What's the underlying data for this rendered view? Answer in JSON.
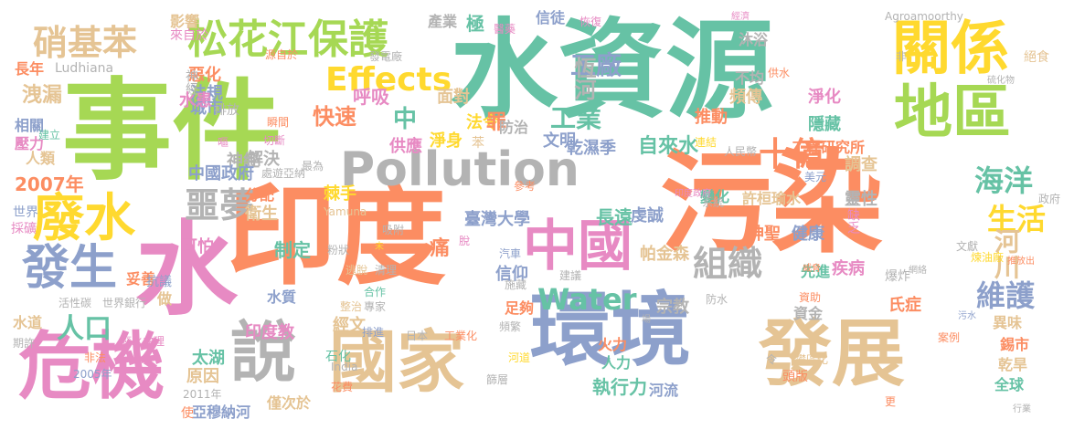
{
  "colors": {
    "green": "#66c2a5",
    "orange": "#fc8d62",
    "blue": "#8da0cb",
    "pink": "#e78ac3",
    "lime": "#a6d854",
    "yellow": "#ffd92f",
    "tan": "#e5c494",
    "gray": "#b3b3b3"
  },
  "words": [
    {
      "t": "事件",
      "c": "lime"
    },
    {
      "t": "水資源",
      "c": "green"
    },
    {
      "t": "污染",
      "c": "orange"
    },
    {
      "t": "印度",
      "c": "orange"
    },
    {
      "t": "環境",
      "c": "blue"
    },
    {
      "t": "發展",
      "c": "tan"
    },
    {
      "t": "水",
      "c": "pink"
    },
    {
      "t": "危機",
      "c": "pink"
    },
    {
      "t": "國家",
      "c": "tan"
    },
    {
      "t": "Pollution",
      "c": "gray"
    },
    {
      "t": "關係",
      "c": "yellow"
    },
    {
      "t": "地區",
      "c": "lime"
    },
    {
      "t": "中國",
      "c": "pink"
    },
    {
      "t": "說",
      "c": "gray"
    },
    {
      "t": "廢水",
      "c": "yellow"
    },
    {
      "t": "發生",
      "c": "blue"
    },
    {
      "t": "松花江保護",
      "c": "lime"
    },
    {
      "t": "硝基苯",
      "c": "tan"
    },
    {
      "t": "Effects",
      "c": "yellow"
    },
    {
      "t": "組織",
      "c": "gray"
    },
    {
      "t": "Water",
      "c": "green"
    },
    {
      "t": "工廠",
      "c": "blue"
    },
    {
      "t": "恆河",
      "c": "gray"
    },
    {
      "t": "工業",
      "c": "green"
    },
    {
      "t": "噩夢",
      "c": "gray"
    },
    {
      "t": "海洋",
      "c": "green"
    },
    {
      "t": "生活",
      "c": "yellow"
    },
    {
      "t": "河川",
      "c": "tan"
    },
    {
      "t": "維護",
      "c": "blue"
    },
    {
      "t": "十億",
      "c": "orange"
    },
    {
      "t": "人口",
      "c": "green"
    },
    {
      "t": "洩漏",
      "c": "tan"
    },
    {
      "t": "快速",
      "c": "orange"
    },
    {
      "t": "中",
      "c": "green"
    },
    {
      "t": "2007年",
      "c": "orange"
    },
    {
      "t": "自來水",
      "c": "green"
    },
    {
      "t": "工程研究所",
      "c": "orange"
    },
    {
      "t": "乾濕季",
      "c": "blue"
    },
    {
      "t": "許桓瑜水",
      "c": "tan"
    },
    {
      "t": "變化",
      "c": "green"
    },
    {
      "t": "臺灣大學",
      "c": "blue"
    },
    {
      "t": "長遠",
      "c": "green"
    },
    {
      "t": "虔誠",
      "c": "blue"
    },
    {
      "t": "帕金森",
      "c": "tan"
    },
    {
      "t": "健康",
      "c": "blue"
    },
    {
      "t": "神聖",
      "c": "orange"
    },
    {
      "t": "異味",
      "c": "tan"
    },
    {
      "t": "錫市",
      "c": "orange"
    },
    {
      "t": "乾旱",
      "c": "tan"
    },
    {
      "t": "全球",
      "c": "green"
    },
    {
      "t": "太湖",
      "c": "green"
    },
    {
      "t": "原因",
      "c": "tan"
    },
    {
      "t": "印度教",
      "c": "pink"
    },
    {
      "t": "經文",
      "c": "tan"
    },
    {
      "t": "水質",
      "c": "blue"
    },
    {
      "t": "制定",
      "c": "green"
    },
    {
      "t": "痛",
      "c": "orange"
    },
    {
      "t": "信仰",
      "c": "blue"
    },
    {
      "t": "足夠",
      "c": "orange"
    },
    {
      "t": "宗教",
      "c": "gray"
    },
    {
      "t": "火力",
      "c": "orange"
    },
    {
      "t": "人力",
      "c": "green"
    },
    {
      "t": "執行力",
      "c": "green"
    },
    {
      "t": "河流",
      "c": "blue"
    },
    {
      "t": "僅次於",
      "c": "tan"
    },
    {
      "t": "亞穆納河",
      "c": "blue"
    },
    {
      "t": "花費",
      "c": "orange"
    },
    {
      "t": "石化",
      "c": "green"
    },
    {
      "t": "2011年",
      "c": "gray"
    },
    {
      "t": "使",
      "c": "orange"
    },
    {
      "t": "可怕",
      "c": "pink"
    },
    {
      "t": "衛生",
      "c": "tan"
    },
    {
      "t": "分配",
      "c": "orange"
    },
    {
      "t": "解決",
      "c": "gray"
    },
    {
      "t": "棘手",
      "c": "yellow"
    },
    {
      "t": "神經",
      "c": "gray"
    },
    {
      "t": "中國政府",
      "c": "blue"
    },
    {
      "t": "供應",
      "c": "pink"
    },
    {
      "t": "文明",
      "c": "blue"
    },
    {
      "t": "淨身",
      "c": "yellow"
    },
    {
      "t": "苯",
      "c": "tan"
    },
    {
      "t": "法令",
      "c": "yellow"
    },
    {
      "t": "罪",
      "c": "orange"
    },
    {
      "t": "防治",
      "c": "gray"
    },
    {
      "t": "面對",
      "c": "tan"
    },
    {
      "t": "呼吸",
      "c": "pink"
    },
    {
      "t": "法規",
      "c": "blue"
    },
    {
      "t": "城市",
      "c": "blue"
    },
    {
      "t": "惡化",
      "c": "orange"
    },
    {
      "t": "神經",
      "c": "gray"
    },
    {
      "t": "水患",
      "c": "pink"
    },
    {
      "t": "影響",
      "c": "tan"
    },
    {
      "t": "來自於",
      "c": "pink"
    },
    {
      "t": "產業",
      "c": "gray"
    },
    {
      "t": "極",
      "c": "green"
    },
    {
      "t": "信徒",
      "c": "blue"
    },
    {
      "t": "長年",
      "c": "orange"
    },
    {
      "t": "Ludhiana",
      "c": "gray"
    },
    {
      "t": "相關",
      "c": "blue"
    },
    {
      "t": "壓力",
      "c": "pink"
    },
    {
      "t": "人類",
      "c": "tan"
    },
    {
      "t": "建立",
      "c": "green"
    },
    {
      "t": "排放",
      "c": "gray"
    },
    {
      "t": "世界",
      "c": "blue"
    },
    {
      "t": "採礦",
      "c": "pink"
    },
    {
      "t": "水道",
      "c": "tan"
    },
    {
      "t": "期許",
      "c": "gray"
    },
    {
      "t": "妥善",
      "c": "orange"
    },
    {
      "t": "抗議",
      "c": "blue"
    },
    {
      "t": "做",
      "c": "tan"
    },
    {
      "t": "世界銀行",
      "c": "gray"
    },
    {
      "t": "活性碳",
      "c": "gray"
    },
    {
      "t": "非法",
      "c": "orange"
    },
    {
      "t": "2005年",
      "c": "blue"
    },
    {
      "t": "廢水處理",
      "c": "pink"
    },
    {
      "t": "推動",
      "c": "orange"
    },
    {
      "t": "頻傳",
      "c": "tan"
    },
    {
      "t": "淨化",
      "c": "pink"
    },
    {
      "t": "隱藏",
      "c": "green"
    },
    {
      "t": "不均",
      "c": "gray"
    },
    {
      "t": "沐浴",
      "c": "gray"
    },
    {
      "t": "調查",
      "c": "tan"
    },
    {
      "t": "靈性",
      "c": "gray"
    },
    {
      "t": "缺乏",
      "c": "pink"
    },
    {
      "t": "疾病",
      "c": "pink"
    },
    {
      "t": "氏症",
      "c": "orange"
    },
    {
      "t": "資金",
      "c": "gray"
    },
    {
      "t": "先進",
      "c": "green"
    },
    {
      "t": "Agroamoorthy",
      "c": "gray"
    },
    {
      "t": "絕食",
      "c": "tan"
    },
    {
      "t": "非",
      "c": "gray"
    },
    {
      "t": "硫化物",
      "c": "gray"
    },
    {
      "t": "供水",
      "c": "orange"
    },
    {
      "t": "發電廠",
      "c": "gray"
    },
    {
      "t": "源自於",
      "c": "orange"
    },
    {
      "t": "瞬間",
      "c": "orange"
    },
    {
      "t": "嘔",
      "c": "pink"
    },
    {
      "t": "切斷",
      "c": "pink"
    },
    {
      "t": "處遊亞納",
      "c": "gray"
    },
    {
      "t": "最為",
      "c": "gray"
    },
    {
      "t": "Yamuna",
      "c": "tan"
    },
    {
      "t": "粉狀",
      "c": "gray"
    },
    {
      "t": "吸附",
      "c": "gray"
    },
    {
      "t": "未",
      "c": "yellow"
    },
    {
      "t": "逃脫",
      "c": "tan"
    },
    {
      "t": "清理",
      "c": "gray"
    },
    {
      "t": "合作",
      "c": "green"
    },
    {
      "t": "專家",
      "c": "gray"
    },
    {
      "t": "整治",
      "c": "tan"
    },
    {
      "t": "排進",
      "c": "blue"
    },
    {
      "t": "India",
      "c": "gray"
    },
    {
      "t": "日本",
      "c": "gray"
    },
    {
      "t": "工業化",
      "c": "orange"
    },
    {
      "t": "汽車",
      "c": "blue"
    },
    {
      "t": "建議",
      "c": "gray"
    },
    {
      "t": "系統",
      "c": "gray"
    },
    {
      "t": "印度政府",
      "c": "pink"
    },
    {
      "t": "人民幣",
      "c": "gray"
    },
    {
      "t": "美元",
      "c": "blue"
    },
    {
      "t": "政府",
      "c": "gray"
    },
    {
      "t": "煉油廠",
      "c": "yellow"
    },
    {
      "t": "網絡",
      "c": "gray"
    },
    {
      "t": "爆炸",
      "c": "gray"
    },
    {
      "t": "文獻",
      "c": "gray"
    },
    {
      "t": "資助",
      "c": "orange"
    },
    {
      "t": "威脅",
      "c": "orange"
    },
    {
      "t": "防水",
      "c": "gray"
    },
    {
      "t": "施藏",
      "c": "gray"
    },
    {
      "t": "場",
      "c": "gray"
    },
    {
      "t": "頻繁",
      "c": "gray"
    },
    {
      "t": "河道",
      "c": "yellow"
    },
    {
      "t": "篩層",
      "c": "gray"
    },
    {
      "t": "頭版",
      "c": "orange"
    },
    {
      "t": "更",
      "c": "orange"
    },
    {
      "t": "令",
      "c": "gray"
    },
    {
      "t": "經濟",
      "c": "pink"
    },
    {
      "t": "攀區化",
      "c": "tan"
    },
    {
      "t": "污水",
      "c": "blue"
    },
    {
      "t": "案例",
      "c": "orange"
    },
    {
      "t": "行業",
      "c": "gray"
    },
    {
      "t": "推放出",
      "c": "orange"
    },
    {
      "t": "恢復",
      "c": "pink"
    },
    {
      "t": "醫藥",
      "c": "pink"
    },
    {
      "t": "連結",
      "c": "yellow"
    },
    {
      "t": "參考",
      "c": "orange"
    },
    {
      "t": "脫",
      "c": "pink"
    }
  ]
}
